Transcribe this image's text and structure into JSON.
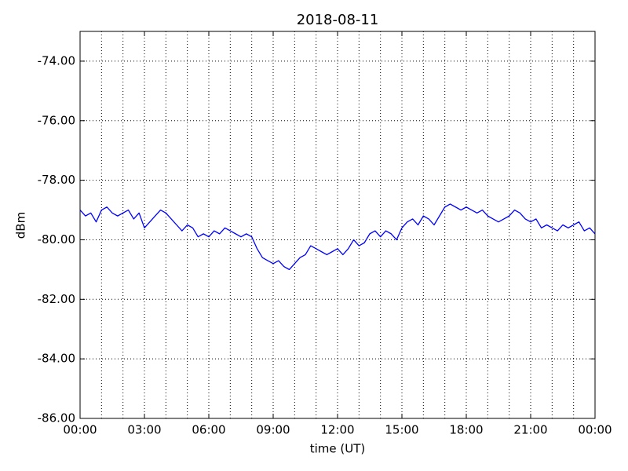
{
  "chart_data": {
    "type": "line",
    "title": "2018-08-11",
    "x_label": "time (UT)",
    "y_label": "dBm",
    "color": "#0000ff",
    "grid": true,
    "xlim": [
      0,
      24
    ],
    "xticks": [
      {
        "value": 0,
        "label": "00:00"
      },
      {
        "value": 3,
        "label": "03:00"
      },
      {
        "value": 6,
        "label": "06:00"
      },
      {
        "value": 9,
        "label": "09:00"
      },
      {
        "value": 12,
        "label": "12:00"
      },
      {
        "value": 15,
        "label": "15:00"
      },
      {
        "value": 18,
        "label": "18:00"
      },
      {
        "value": 21,
        "label": "21:00"
      },
      {
        "value": 24,
        "label": "00:00"
      }
    ],
    "xminorticks": [
      1,
      2,
      4,
      5,
      7,
      8,
      10,
      11,
      13,
      14,
      16,
      17,
      19,
      20,
      22,
      23
    ],
    "ylim": [
      -86,
      -73
    ],
    "yticks": [
      {
        "value": -86,
        "label": "-86.00"
      },
      {
        "value": -84,
        "label": "-84.00"
      },
      {
        "value": -82,
        "label": "-82.00"
      },
      {
        "value": -80,
        "label": "-80.00"
      },
      {
        "value": -78,
        "label": "-78.00"
      },
      {
        "value": -76,
        "label": "-76.00"
      },
      {
        "value": -74,
        "label": "-74.00"
      }
    ],
    "x": [
      0,
      0.25,
      0.5,
      0.75,
      1,
      1.25,
      1.5,
      1.75,
      2,
      2.25,
      2.5,
      2.75,
      3,
      3.25,
      3.5,
      3.75,
      4,
      4.25,
      4.5,
      4.75,
      5,
      5.25,
      5.5,
      5.75,
      6,
      6.25,
      6.5,
      6.75,
      7,
      7.25,
      7.5,
      7.75,
      8,
      8.25,
      8.5,
      8.75,
      9,
      9.25,
      9.5,
      9.75,
      10,
      10.25,
      10.5,
      10.75,
      11,
      11.25,
      11.5,
      11.75,
      12,
      12.25,
      12.5,
      12.75,
      13,
      13.25,
      13.5,
      13.75,
      14,
      14.25,
      14.5,
      14.75,
      15,
      15.25,
      15.5,
      15.75,
      16,
      16.25,
      16.5,
      16.75,
      17,
      17.25,
      17.5,
      17.75,
      18,
      18.25,
      18.5,
      18.75,
      19,
      19.25,
      19.5,
      19.75,
      20,
      20.25,
      20.5,
      20.75,
      21,
      21.25,
      21.5,
      21.75,
      22,
      22.25,
      22.5,
      22.75,
      23,
      23.25,
      23.5,
      23.75,
      24
    ],
    "values": [
      -79.0,
      -79.2,
      -79.1,
      -79.4,
      -79.0,
      -78.9,
      -79.1,
      -79.2,
      -79.1,
      -79.0,
      -79.3,
      -79.1,
      -79.6,
      -79.4,
      -79.2,
      -79.0,
      -79.1,
      -79.3,
      -79.5,
      -79.7,
      -79.5,
      -79.6,
      -79.9,
      -79.8,
      -79.9,
      -79.7,
      -79.8,
      -79.6,
      -79.7,
      -79.8,
      -79.9,
      -79.8,
      -79.9,
      -80.3,
      -80.6,
      -80.7,
      -80.8,
      -80.7,
      -80.9,
      -81.0,
      -80.8,
      -80.6,
      -80.5,
      -80.2,
      -80.3,
      -80.4,
      -80.5,
      -80.4,
      -80.3,
      -80.5,
      -80.3,
      -80.0,
      -80.2,
      -80.1,
      -79.8,
      -79.7,
      -79.9,
      -79.7,
      -79.8,
      -80.0,
      -79.6,
      -79.4,
      -79.3,
      -79.5,
      -79.2,
      -79.3,
      -79.5,
      -79.2,
      -78.9,
      -78.8,
      -78.9,
      -79.0,
      -78.9,
      -79.0,
      -79.1,
      -79.0,
      -79.2,
      -79.3,
      -79.4,
      -79.3,
      -79.2,
      -79.0,
      -79.1,
      -79.3,
      -79.4,
      -79.3,
      -79.6,
      -79.5,
      -79.6,
      -79.7,
      -79.5,
      -79.6,
      -79.5,
      -79.4,
      -79.7,
      -79.6,
      -79.8
    ]
  }
}
